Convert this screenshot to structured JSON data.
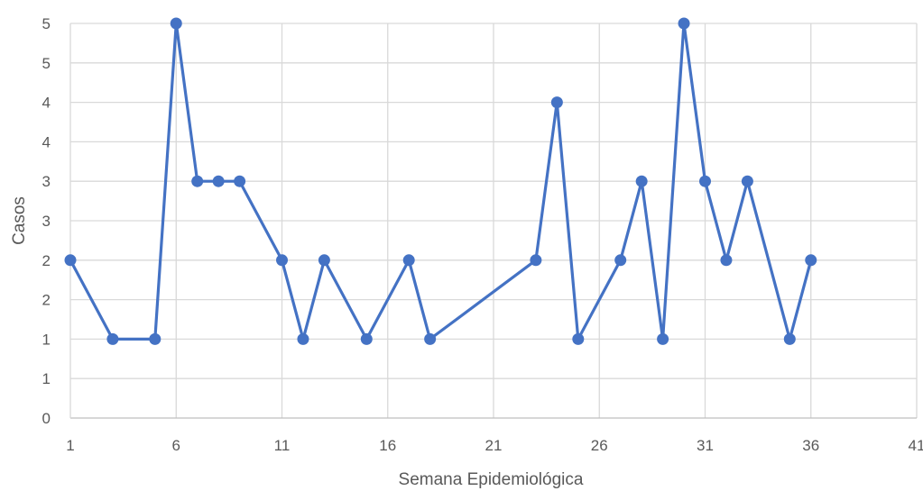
{
  "chart_data": {
    "type": "line",
    "title": "",
    "xlabel": "Semana Epidemiológica",
    "ylabel": "Casos",
    "xlim": [
      1,
      41
    ],
    "ylim": [
      0,
      5
    ],
    "x_ticks": [
      1,
      6,
      11,
      16,
      21,
      26,
      31,
      36,
      41
    ],
    "y_ticks": [
      0,
      0.5,
      1,
      1.5,
      2,
      2.5,
      3,
      3.5,
      4,
      4.5,
      5
    ],
    "y_tick_labels": [
      "0",
      "1",
      "1",
      "2",
      "2",
      "3",
      "3",
      "4",
      "4",
      "5",
      "5"
    ],
    "grid": true,
    "legend": "none",
    "color": "#4472C4",
    "series": [
      {
        "x": [
          1,
          3,
          5,
          6,
          7,
          8,
          9,
          11,
          12,
          13,
          15,
          17,
          18,
          23,
          24,
          25,
          27,
          28,
          29,
          30,
          31,
          32,
          33,
          35,
          36
        ],
        "values": [
          2,
          1,
          1,
          5,
          3,
          3,
          3,
          2,
          1,
          2,
          1,
          2,
          1,
          2,
          4,
          1,
          2,
          3,
          1,
          5,
          3,
          2,
          3,
          1,
          2
        ]
      }
    ]
  }
}
